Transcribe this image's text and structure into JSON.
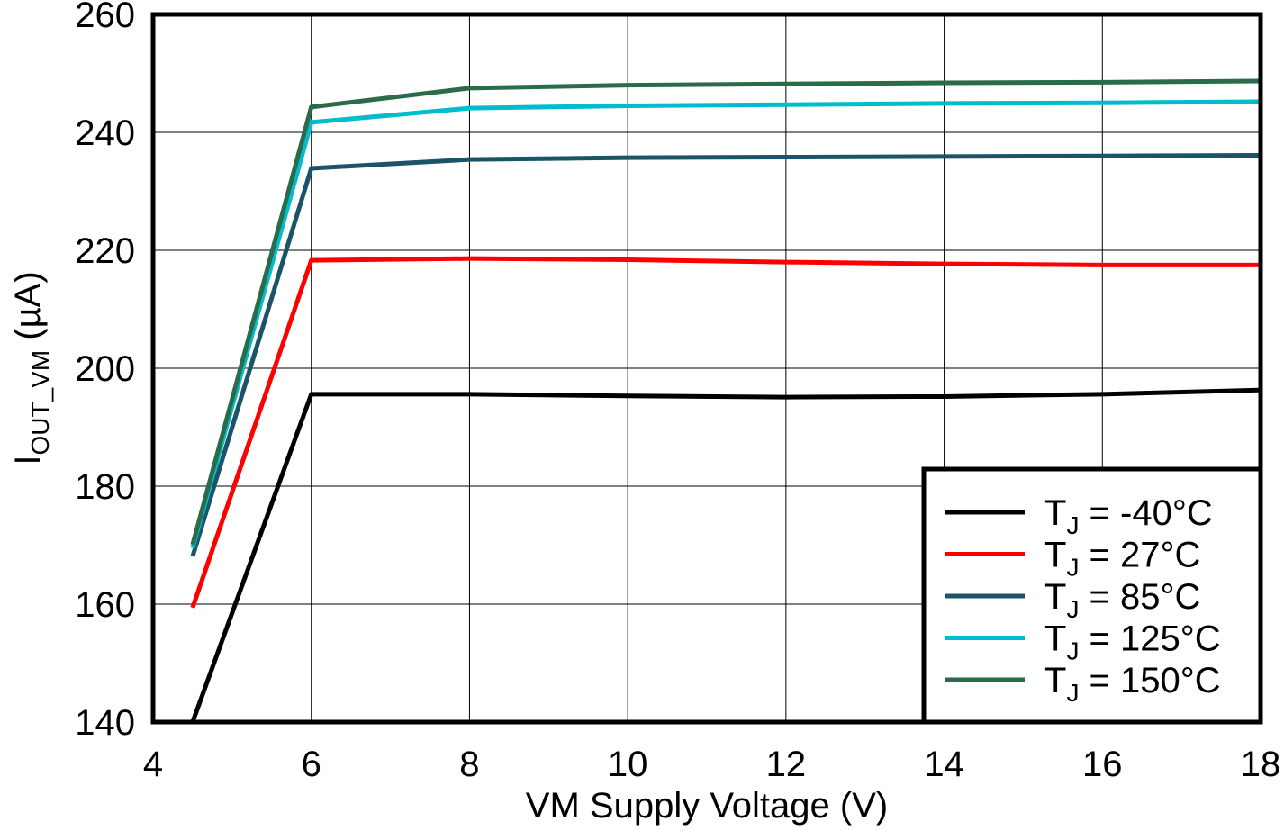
{
  "chart_data": {
    "type": "line",
    "title": "",
    "xlabel": "VM Supply Voltage (V)",
    "ylabel": {
      "main": "I",
      "sub": "OUT_VM",
      "unit": " (µA)"
    },
    "xlim": [
      4,
      18
    ],
    "ylim": [
      140,
      260
    ],
    "xticks": [
      4,
      6,
      8,
      10,
      12,
      14,
      16,
      18
    ],
    "yticks": [
      140,
      160,
      180,
      200,
      220,
      240,
      260
    ],
    "grid": true,
    "legend_position": "bottom-right",
    "x": [
      4.5,
      6,
      8,
      10,
      12,
      14,
      16,
      18
    ],
    "series": [
      {
        "name": "T_J = -40°C",
        "label_main": "T",
        "label_sub": "J",
        "label_rest": " = -40°C",
        "color": "#000000",
        "values": [
          140,
          195.6,
          195.6,
          195.3,
          195.1,
          195.2,
          195.6,
          196.3
        ]
      },
      {
        "name": "T_J = 27°C",
        "label_main": "T",
        "label_sub": "J",
        "label_rest": " = 27°C",
        "color": "#ff0000",
        "values": [
          159.4,
          218.3,
          218.6,
          218.4,
          218.0,
          217.7,
          217.5,
          217.5
        ]
      },
      {
        "name": "T_J = 85°C",
        "label_main": "T",
        "label_sub": "J",
        "label_rest": " = 85°C",
        "color": "#1b5468",
        "values": [
          168.1,
          233.9,
          235.4,
          235.7,
          235.8,
          235.9,
          236.0,
          236.1
        ]
      },
      {
        "name": "T_J = 125°C",
        "label_main": "T",
        "label_sub": "J",
        "label_rest": " = 125°C",
        "color": "#00bccc",
        "values": [
          169.5,
          241.7,
          244.1,
          244.5,
          244.7,
          244.9,
          245.0,
          245.2
        ]
      },
      {
        "name": "T_J = 150°C",
        "label_main": "T",
        "label_sub": "J",
        "label_rest": " = 150°C",
        "color": "#2a6b4a",
        "values": [
          170.1,
          244.3,
          247.5,
          248.0,
          248.2,
          248.4,
          248.5,
          248.7
        ]
      }
    ]
  }
}
